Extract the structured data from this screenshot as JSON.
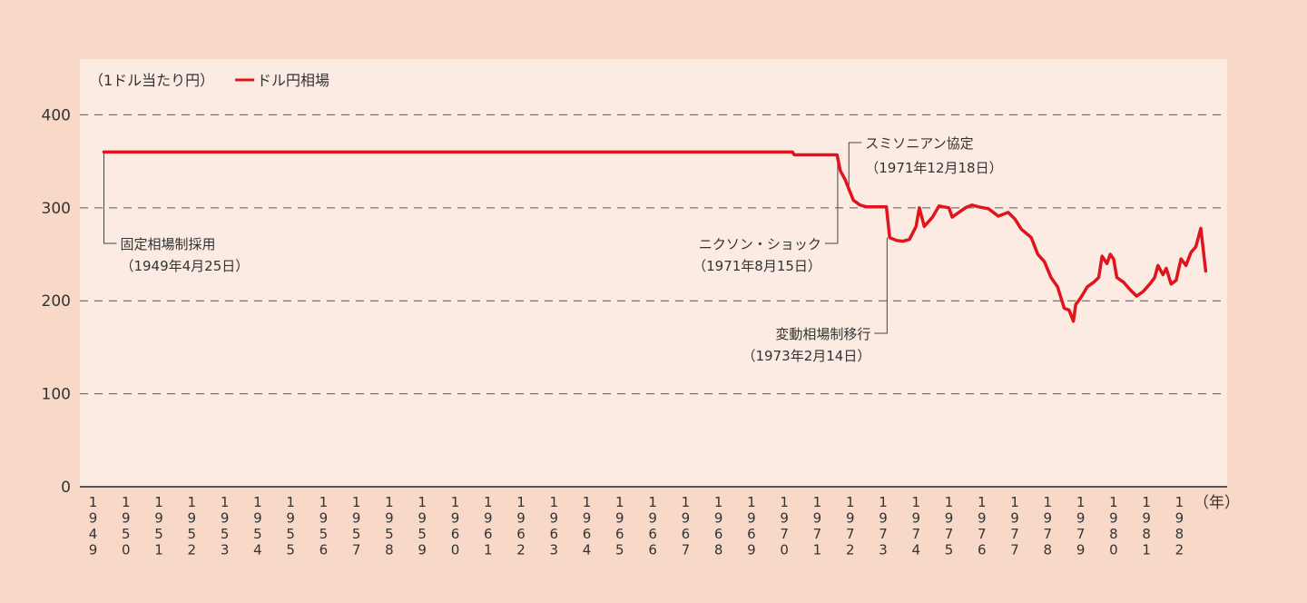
{
  "chart_data": {
    "type": "line",
    "unit_label": "（1ドル当たり円）",
    "x_unit_label": "（年）",
    "series": [
      {
        "name": "ドル円相場",
        "color": "#e0141c",
        "points": [
          [
            1949.33,
            360
          ],
          [
            1970.25,
            360
          ],
          [
            1970.3,
            357
          ],
          [
            1971.0,
            357
          ],
          [
            1971.6,
            357
          ],
          [
            1971.7,
            340
          ],
          [
            1971.85,
            330
          ],
          [
            1971.96,
            320
          ],
          [
            1972.1,
            308
          ],
          [
            1972.3,
            303
          ],
          [
            1972.5,
            301
          ],
          [
            1972.8,
            301
          ],
          [
            1973.1,
            301
          ],
          [
            1973.2,
            268
          ],
          [
            1973.4,
            265
          ],
          [
            1973.6,
            264
          ],
          [
            1973.8,
            266
          ],
          [
            1974.0,
            280
          ],
          [
            1974.1,
            300
          ],
          [
            1974.25,
            280
          ],
          [
            1974.5,
            290
          ],
          [
            1974.7,
            302
          ],
          [
            1975.0,
            300
          ],
          [
            1975.1,
            290
          ],
          [
            1975.3,
            295
          ],
          [
            1975.5,
            300
          ],
          [
            1975.7,
            303
          ],
          [
            1975.9,
            301
          ],
          [
            1976.2,
            299
          ],
          [
            1976.5,
            291
          ],
          [
            1976.8,
            295
          ],
          [
            1977.0,
            288
          ],
          [
            1977.2,
            277
          ],
          [
            1977.5,
            268
          ],
          [
            1977.7,
            250
          ],
          [
            1977.9,
            242
          ],
          [
            1978.1,
            225
          ],
          [
            1978.3,
            215
          ],
          [
            1978.5,
            192
          ],
          [
            1978.65,
            190
          ],
          [
            1978.78,
            178
          ],
          [
            1978.85,
            196
          ],
          [
            1979.0,
            203
          ],
          [
            1979.2,
            215
          ],
          [
            1979.4,
            220
          ],
          [
            1979.55,
            225
          ],
          [
            1979.65,
            248
          ],
          [
            1979.8,
            240
          ],
          [
            1979.9,
            250
          ],
          [
            1980.0,
            245
          ],
          [
            1980.1,
            225
          ],
          [
            1980.3,
            220
          ],
          [
            1980.5,
            212
          ],
          [
            1980.7,
            205
          ],
          [
            1980.9,
            210
          ],
          [
            1981.1,
            218
          ],
          [
            1981.25,
            225
          ],
          [
            1981.35,
            238
          ],
          [
            1981.5,
            228
          ],
          [
            1981.6,
            235
          ],
          [
            1981.75,
            218
          ],
          [
            1981.9,
            222
          ],
          [
            1982.05,
            245
          ],
          [
            1982.2,
            238
          ],
          [
            1982.35,
            252
          ],
          [
            1982.5,
            258
          ],
          [
            1982.65,
            278
          ],
          [
            1982.8,
            232
          ]
        ]
      }
    ],
    "xlim": [
      1948.6,
      1983.45
    ],
    "ylim": [
      0,
      460
    ],
    "yticks": [
      0,
      100,
      200,
      300,
      400
    ],
    "xticks": [
      1949,
      1950,
      1951,
      1952,
      1953,
      1954,
      1955,
      1956,
      1957,
      1958,
      1959,
      1960,
      1961,
      1962,
      1963,
      1964,
      1965,
      1966,
      1967,
      1968,
      1969,
      1970,
      1971,
      1972,
      1973,
      1974,
      1975,
      1976,
      1977,
      1978,
      1979,
      1980,
      1981,
      1982
    ],
    "grid": "horizontal-dashed",
    "legend_position": "top-left",
    "annotations": [
      {
        "id": "fixed-rate",
        "label": "固定相場制採用",
        "date": "（1949年4月25日）",
        "x": 1949.33,
        "y": 360,
        "side": "right"
      },
      {
        "id": "nixon-shock",
        "label": "ニクソン・ショック",
        "date": "（1971年8月15日）",
        "x": 1971.62,
        "y": 357,
        "side": "left"
      },
      {
        "id": "smithsonian",
        "label": "スミソニアン協定",
        "date": "（1971年12月18日）",
        "x": 1971.96,
        "y": 320,
        "side": "right-up"
      },
      {
        "id": "floating-rate",
        "label": "変動相場制移行",
        "date": "（1973年2月14日）",
        "x": 1973.12,
        "y": 268,
        "side": "left"
      }
    ]
  }
}
